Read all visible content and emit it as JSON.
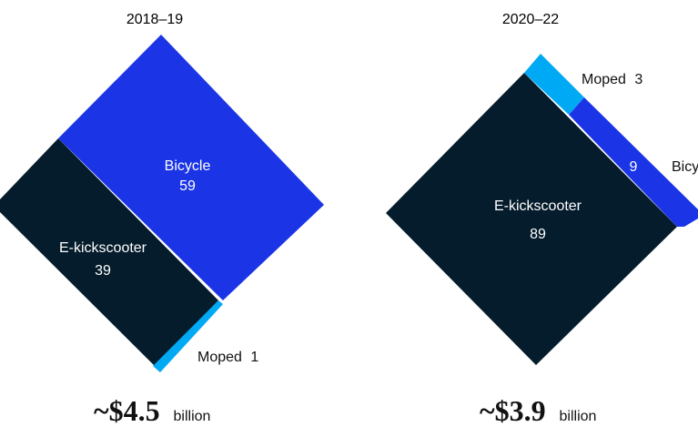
{
  "chart_data": [
    {
      "type": "treemap",
      "title": "2018–19",
      "total": {
        "value": "~$4.5",
        "unit": "billion"
      },
      "segments": [
        {
          "name": "Bicycle",
          "value": 59,
          "value_label": "59",
          "color": "#1B35E6"
        },
        {
          "name": "E-kickscooter",
          "value": 39,
          "value_label": "39",
          "color": "#051C2C"
        },
        {
          "name": "Moped",
          "value": 1,
          "value_label": "1",
          "color": "#00A9F4"
        }
      ]
    },
    {
      "type": "treemap",
      "title": "2020–22",
      "total": {
        "value": "~$3.9",
        "unit": "billion"
      },
      "segments": [
        {
          "name": "E-kickscooter",
          "value": 89,
          "value_label": "89",
          "color": "#051C2C"
        },
        {
          "name": "Bicycle",
          "display_label": "Bicy",
          "value": 9,
          "value_label": "9",
          "color": "#1B35E6"
        },
        {
          "name": "Moped",
          "value": 3,
          "value_label": "3",
          "color": "#00A9F4"
        }
      ]
    }
  ]
}
